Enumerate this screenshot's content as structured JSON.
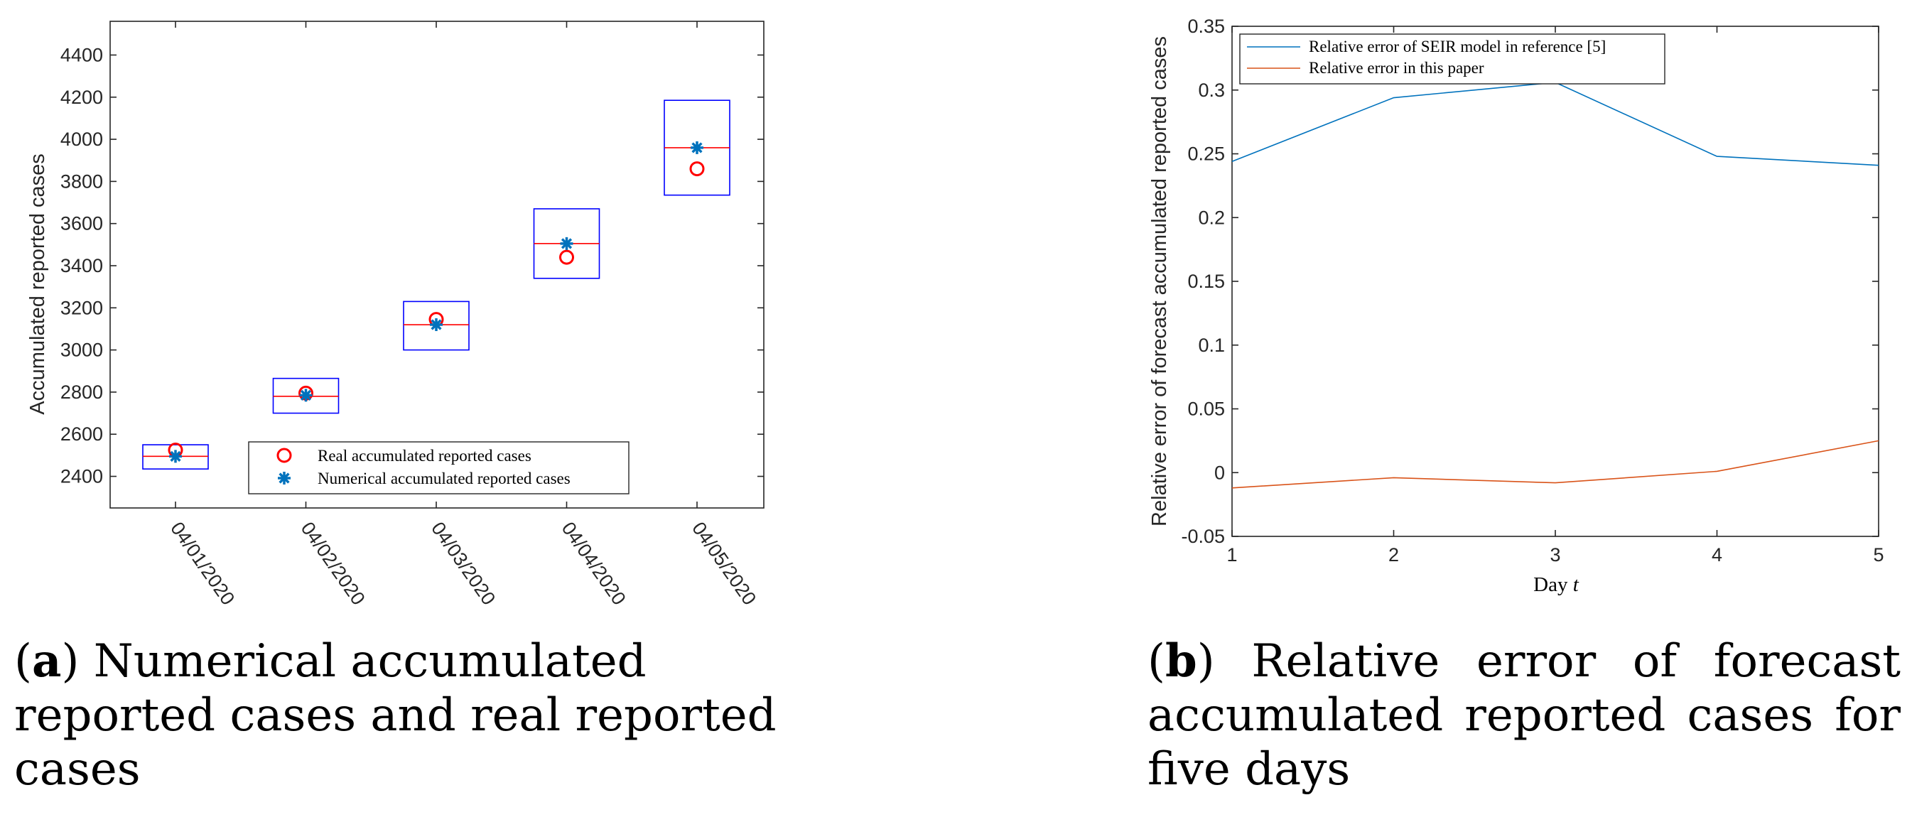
{
  "chart_data": [
    {
      "type": "box-scatter",
      "panel": "a",
      "ylabel": "Accumulated reported cases",
      "xlabel": "",
      "categories": [
        "04/01/2020",
        "04/02/2020",
        "04/03/2020",
        "04/04/2020",
        "04/05/2020"
      ],
      "ylim": [
        2250,
        4560
      ],
      "yticks": [
        2400,
        2600,
        2800,
        3000,
        3200,
        3400,
        3600,
        3800,
        4000,
        4200,
        4400
      ],
      "boxes": [
        {
          "low": 2435,
          "high": 2550,
          "median": 2495
        },
        {
          "low": 2700,
          "high": 2865,
          "median": 2780
        },
        {
          "low": 3000,
          "high": 3230,
          "median": 3120
        },
        {
          "low": 3340,
          "high": 3670,
          "median": 3505
        },
        {
          "low": 3735,
          "high": 4185,
          "median": 3960
        }
      ],
      "series": [
        {
          "name": "Real accumulated reported cases",
          "marker": "circle",
          "color": "#ff0000",
          "values": [
            2525,
            2795,
            3145,
            3440,
            3860
          ]
        },
        {
          "name": "Numerical accumulated reported cases",
          "marker": "star",
          "color": "#0072bd",
          "values": [
            2495,
            2785,
            3120,
            3505,
            3960
          ]
        }
      ],
      "legend_position": "bottom-right"
    },
    {
      "type": "line",
      "panel": "b",
      "ylabel": "Relative error of forecast accumulated reported cases",
      "xlabel_prefix": "Day",
      "xlabel_var": "t",
      "x": [
        1,
        2,
        3,
        4,
        5
      ],
      "xlim": [
        1,
        5
      ],
      "ylim": [
        -0.05,
        0.35
      ],
      "yticks": [
        "-0.05",
        "0",
        "0.05",
        "0.1",
        "0.15",
        "0.2",
        "0.25",
        "0.3",
        "0.35"
      ],
      "series": [
        {
          "name": "Relative error of SEIR model in reference [5]",
          "color": "#0072bd",
          "values": [
            0.244,
            0.294,
            0.306,
            0.248,
            0.241
          ]
        },
        {
          "name": "Relative error in this paper",
          "color": "#d95319",
          "values": [
            -0.012,
            -0.004,
            -0.008,
            0.001,
            0.025
          ]
        }
      ],
      "legend_position": "top-left"
    }
  ],
  "captions": {
    "a_label": "a",
    "a_text": " Numerical accumulated reported cases and real reported cases",
    "b_label": "b",
    "b_text": " Relative error of forecast accumulated reported cases for five days"
  }
}
